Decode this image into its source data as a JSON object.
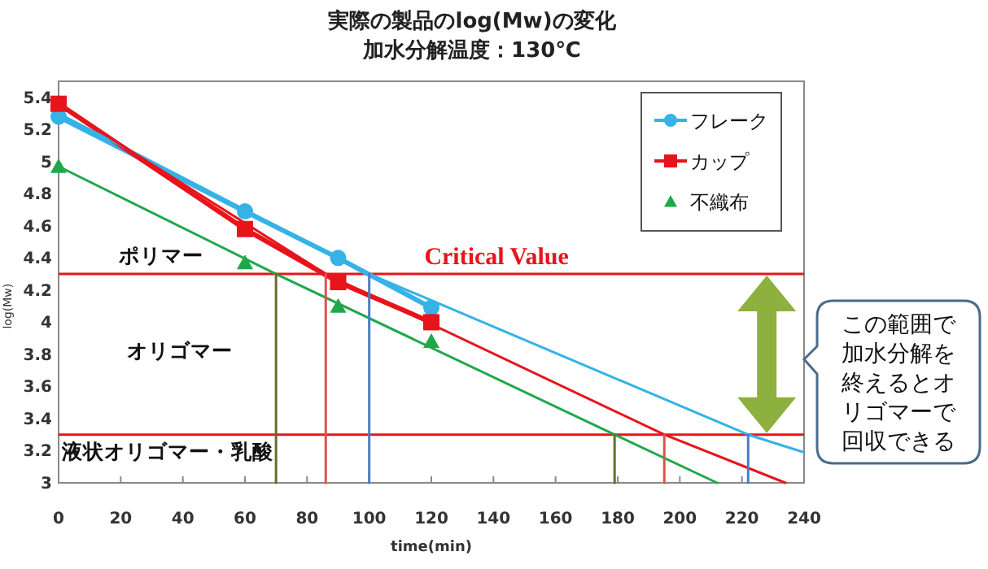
{
  "chart_data": {
    "type": "line",
    "title": "実際の製品のlog(Mw)の変化",
    "subtitle": "加水分解温度：130℃",
    "xlabel": "time(min)",
    "ylabel": "log(Mw)",
    "x": [
      0,
      60,
      90,
      120
    ],
    "series": [
      {
        "name": "フレーク",
        "color": "#35b2e6",
        "marker": "circle",
        "values": [
          5.28,
          4.69,
          4.4,
          4.09
        ]
      },
      {
        "name": "カップ",
        "color": "#e8141b",
        "marker": "square",
        "values": [
          5.36,
          4.58,
          4.25,
          4.0
        ]
      },
      {
        "name": "不織布",
        "type": "scatter",
        "color": "#1fa84a",
        "marker": "triangle",
        "values": [
          4.97,
          4.37,
          4.1,
          3.88
        ]
      },
      {
        "type": "line",
        "color": "#35b2e6",
        "marker": "none",
        "x": [
          0,
          100,
          222,
          240
        ],
        "values": [
          5.3,
          4.3,
          3.3,
          3.19
        ]
      },
      {
        "type": "line",
        "color": "#e8141b",
        "marker": "none",
        "x": [
          0,
          86,
          195,
          234
        ],
        "values": [
          5.35,
          4.3,
          3.3,
          3.0
        ]
      },
      {
        "type": "line",
        "color": "#1fa84a",
        "marker": "none",
        "x": [
          0,
          70,
          179,
          212
        ],
        "values": [
          4.97,
          4.3,
          3.3,
          3.0
        ]
      },
      {
        "type": "line",
        "color": "#6b6b2a",
        "marker": "none",
        "x": [
          70,
          70
        ],
        "values": [
          3.0,
          4.3
        ]
      },
      {
        "type": "line",
        "color": "#d9534f",
        "marker": "none",
        "x": [
          86,
          86
        ],
        "values": [
          3.0,
          4.3
        ]
      },
      {
        "type": "line",
        "color": "#4a7cc9",
        "marker": "none",
        "x": [
          100,
          100
        ],
        "values": [
          3.0,
          4.3
        ]
      },
      {
        "type": "line",
        "color": "#6b6b2a",
        "marker": "none",
        "x": [
          179,
          179
        ],
        "values": [
          3.0,
          3.3
        ]
      },
      {
        "type": "line",
        "color": "#d9534f",
        "marker": "none",
        "x": [
          195,
          195
        ],
        "values": [
          3.0,
          3.3
        ]
      },
      {
        "type": "line",
        "color": "#4a7cc9",
        "marker": "none",
        "x": [
          222,
          222
        ],
        "values": [
          3.0,
          3.3
        ]
      }
    ],
    "xlim": [
      0,
      240
    ],
    "xticks": [
      0,
      20,
      40,
      60,
      80,
      100,
      120,
      140,
      160,
      180,
      200,
      220,
      240
    ],
    "ylim": [
      3,
      5.5
    ],
    "yticks": [
      3,
      3.2,
      3.4,
      3.6,
      3.8,
      4,
      4.2,
      4.4,
      4.6,
      4.8,
      5,
      5.2,
      5.4
    ],
    "ref_lines": [
      {
        "axis": "y",
        "value": 4.3,
        "label": "Critical Value",
        "color": "#e8141b"
      },
      {
        "axis": "y",
        "value": 3.3,
        "color": "#e8141b"
      }
    ],
    "annotations": [
      "ポリマー",
      "オリゴマー",
      "液状オリゴマー・乳酸",
      "この範囲で加水分解を終えるとオリゴマーで回収できる"
    ],
    "legend": "top right",
    "grid": false,
    "line_style": "solid"
  }
}
